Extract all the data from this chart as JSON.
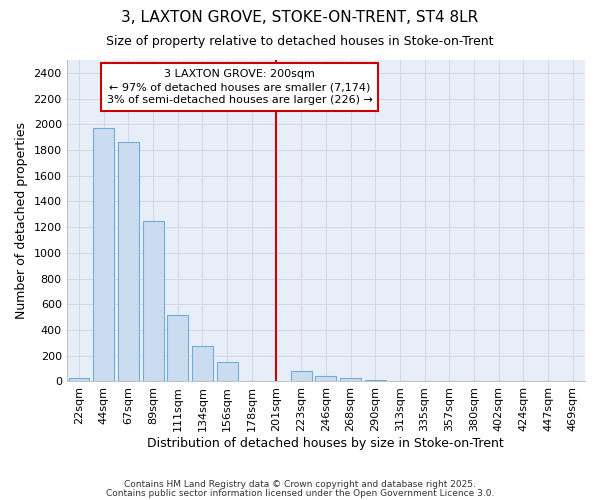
{
  "title": "3, LAXTON GROVE, STOKE-ON-TRENT, ST4 8LR",
  "subtitle": "Size of property relative to detached houses in Stoke-on-Trent",
  "xlabel": "Distribution of detached houses by size in Stoke-on-Trent",
  "ylabel": "Number of detached properties",
  "categories": [
    "22sqm",
    "44sqm",
    "67sqm",
    "89sqm",
    "111sqm",
    "134sqm",
    "156sqm",
    "178sqm",
    "201sqm",
    "223sqm",
    "246sqm",
    "268sqm",
    "290sqm",
    "313sqm",
    "335sqm",
    "357sqm",
    "380sqm",
    "402sqm",
    "424sqm",
    "447sqm",
    "469sqm"
  ],
  "values": [
    25,
    1970,
    1860,
    1250,
    520,
    275,
    150,
    0,
    0,
    80,
    40,
    30,
    15,
    5,
    2,
    1,
    0,
    0,
    0,
    0,
    0
  ],
  "bar_color": "#ccdcf0",
  "bar_edge_color": "#6baed6",
  "highlight_bar_index": 8,
  "highlight_line_color": "#cc0000",
  "annotation_line1": "3 LAXTON GROVE: 200sqm",
  "annotation_line2": "← 97% of detached houses are smaller (7,174)",
  "annotation_line3": "3% of semi-detached houses are larger (226) →",
  "annotation_box_color": "#ffffff",
  "annotation_box_edge_color": "#cc0000",
  "ylim": [
    0,
    2500
  ],
  "yticks": [
    0,
    200,
    400,
    600,
    800,
    1000,
    1200,
    1400,
    1600,
    1800,
    2000,
    2200,
    2400
  ],
  "footer1": "Contains HM Land Registry data © Crown copyright and database right 2025.",
  "footer2": "Contains public sector information licensed under the Open Government Licence 3.0.",
  "plot_bg_color": "#e8eef8",
  "fig_bg_color": "#ffffff",
  "grid_color": "#d0d8e8",
  "title_fontsize": 11,
  "subtitle_fontsize": 9,
  "label_fontsize": 9,
  "tick_fontsize": 8,
  "annotation_fontsize": 8
}
